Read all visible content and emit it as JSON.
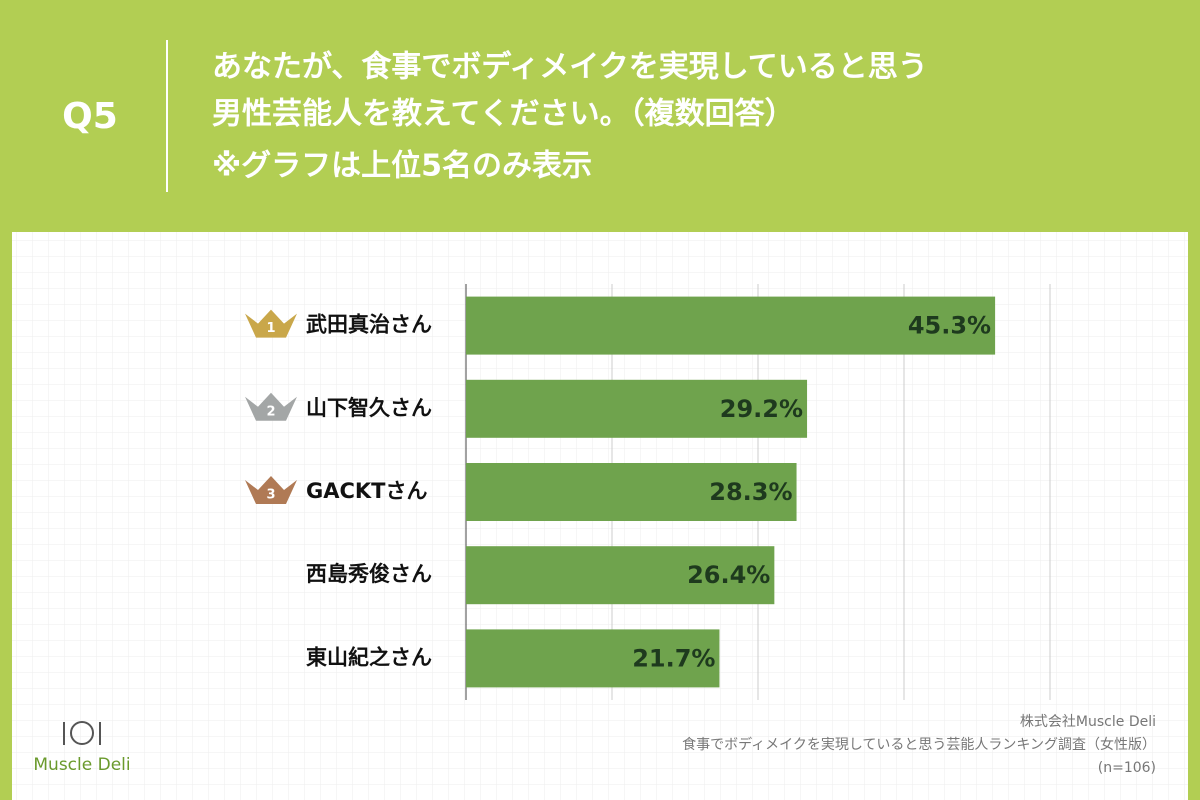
{
  "header": {
    "question": "Q5",
    "title_lines": [
      "あなたが、食事でボディメイクを実現していると思う",
      "男性芸能人を教えてください。（複数回答）",
      "※グラフは上位5名のみ表示"
    ]
  },
  "chart_data": {
    "type": "bar",
    "orientation": "horizontal",
    "categories": [
      "武田真治さん",
      "山下智久さん",
      "GACKTさん",
      "西島秀俊さん",
      "東山紀之さん"
    ],
    "values": [
      45.3,
      29.2,
      28.3,
      26.4,
      21.7
    ],
    "value_labels": [
      "45.3%",
      "29.2%",
      "28.3%",
      "26.4%",
      "21.7%"
    ],
    "rank_labels": [
      "1",
      "2",
      "3",
      null,
      null
    ],
    "rank_colors": [
      "#c9a74a",
      "#a3a6a6",
      "#b07a55",
      null,
      null
    ],
    "color": "#6fa34d",
    "xlim": [
      0,
      50
    ],
    "xticks": [
      0,
      12.5,
      25,
      37.5,
      50
    ],
    "grid": true
  },
  "footer": {
    "company": "株式会社Muscle Deli",
    "survey": "食事でボディメイクを実現していると思う芸能人ランキング調査（女性版）",
    "sample": "(n=106)",
    "logo": "Muscle Deli"
  }
}
